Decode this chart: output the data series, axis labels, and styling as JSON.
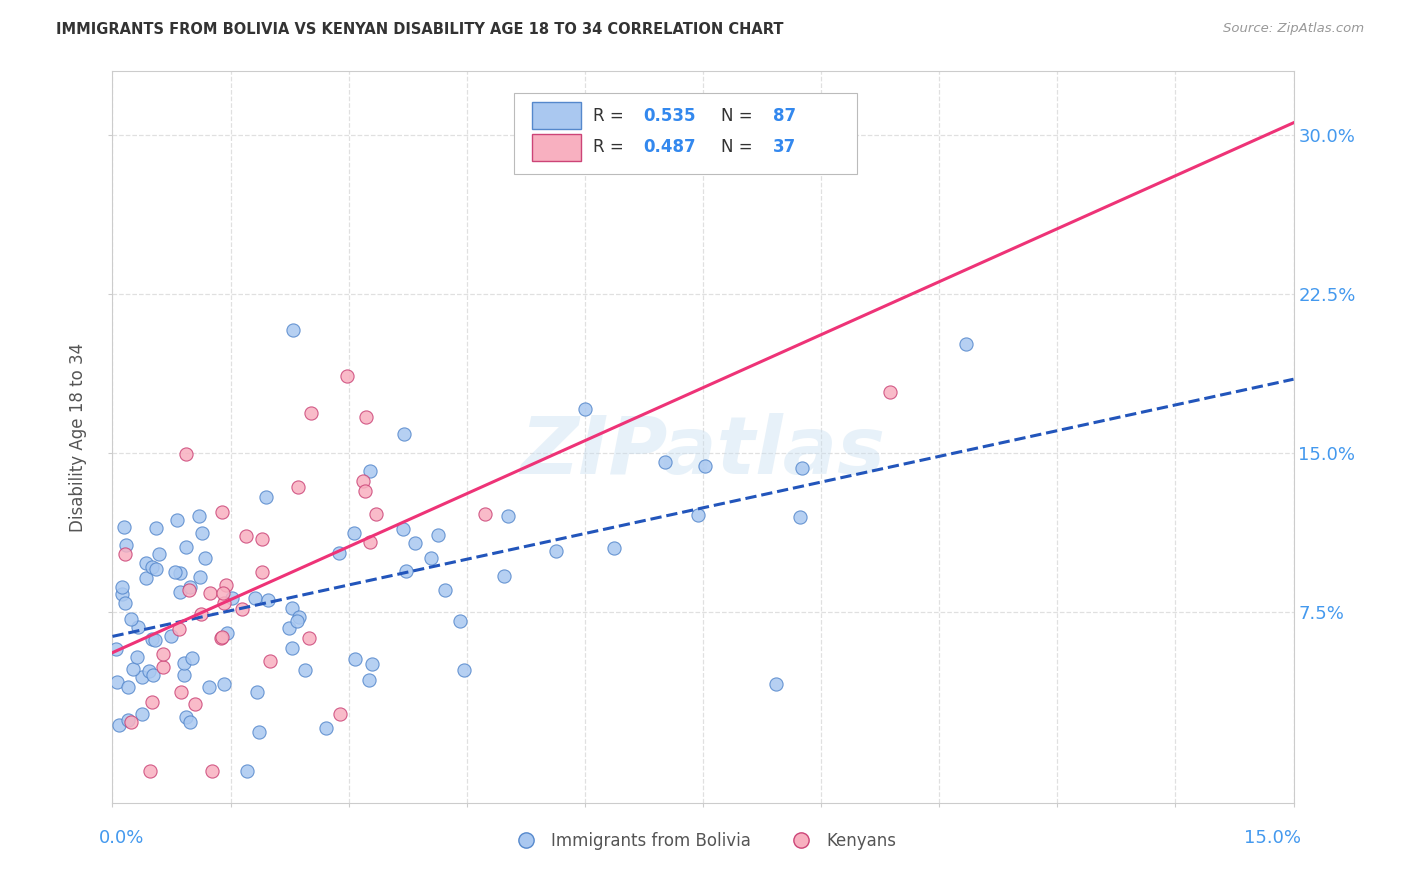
{
  "title": "IMMIGRANTS FROM BOLIVIA VS KENYAN DISABILITY AGE 18 TO 34 CORRELATION CHART",
  "source": "Source: ZipAtlas.com",
  "ylabel": "Disability Age 18 to 34",
  "y_ticks": [
    0.075,
    0.15,
    0.225,
    0.3
  ],
  "y_tick_labels": [
    "7.5%",
    "15.0%",
    "22.5%",
    "30.0%"
  ],
  "xlim": [
    0.0,
    0.15
  ],
  "ylim": [
    -0.015,
    0.33
  ],
  "x_tick_left": "0.0%",
  "x_tick_right": "15.0%",
  "series_blue": {
    "label": "Immigrants from Bolivia",
    "R": 0.535,
    "N": 87,
    "color": "#aac8f0",
    "edge_color": "#5588cc",
    "regression_color": "#2255bb",
    "regression_style": "--"
  },
  "series_pink": {
    "label": "Kenyans",
    "R": 0.487,
    "N": 37,
    "color": "#f8b0c0",
    "edge_color": "#cc4477",
    "regression_color": "#ee3377",
    "regression_style": "-"
  },
  "watermark": "ZIPatlas",
  "background_color": "#ffffff",
  "grid_color": "#dddddd"
}
